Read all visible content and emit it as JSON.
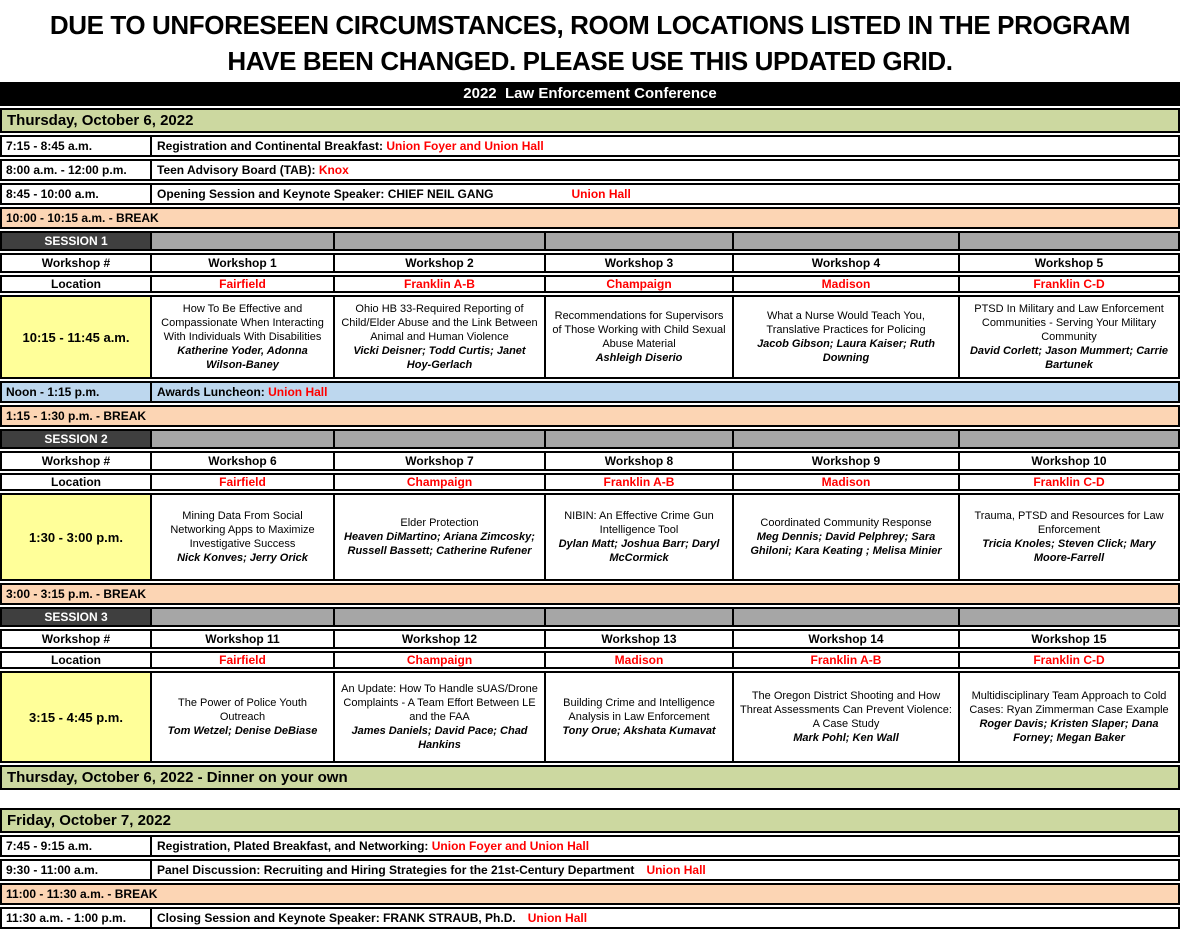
{
  "banner": {
    "line1": "DUE TO UNFORESEEN CIRCUMSTANCES, ROOM LOCATIONS LISTED IN THE PROGRAM",
    "line2": "HAVE BEEN CHANGED. PLEASE USE THIS UPDATED GRID."
  },
  "title": "2022  Law Enforcement Conference",
  "colors": {
    "day_header_green": "#ccd8a0",
    "break_peach": "#fcd5b4",
    "lunch_blue": "#bdd7ee",
    "time_yellow": "#ffff99",
    "session_dark": "#3f3f3f",
    "session_gray": "#a6a6a6",
    "location_red": "#ff0000"
  },
  "grid_labels": {
    "workshop_col": "Workshop #",
    "location_col": "Location"
  },
  "thursday": {
    "header": "Thursday, October 6, 2022",
    "events": [
      {
        "time": "7:15 - 8:45 a.m.",
        "desc": "Registration and Continental Breakfast:",
        "location": "Union Foyer and Union Hall"
      },
      {
        "time": "8:00 a.m. - 12:00 p.m.",
        "desc": "Teen Advisory Board (TAB):",
        "location": "Knox"
      },
      {
        "time": "8:45 - 10:00 a.m.",
        "desc": "Opening Session and Keynote Speaker: CHIEF NEIL GANG",
        "location": "Union Hall"
      }
    ],
    "break_morning": "10:00 - 10:15 a.m.  - BREAK",
    "lunch": {
      "time": "Noon - 1:15 p.m.",
      "desc": "Awards Luncheon:",
      "location": "Union Hall"
    },
    "break_afternoon1": "1:15 - 1:30 p.m. - BREAK",
    "break_afternoon2": "3:00 - 3:15 p.m. - BREAK",
    "dinner": "Thursday, October 6, 2022 - Dinner on your own"
  },
  "sessions": [
    {
      "name": "SESSION 1",
      "time": "10:15 - 11:45 a.m.",
      "workshops": [
        {
          "num": "Workshop 1",
          "room": "Fairfield",
          "title": "How To Be Effective and Compassionate When Interacting With Individuals With Disabilities",
          "speakers": "Katherine Yoder, Adonna Wilson-Baney"
        },
        {
          "num": "Workshop 2",
          "room": "Franklin A-B",
          "title": "Ohio HB 33-Required Reporting of Child/Elder Abuse and the Link Between Animal and Human Violence",
          "speakers": "Vicki Deisner; Todd Curtis; Janet Hoy-Gerlach"
        },
        {
          "num": "Workshop 3",
          "room": "Champaign",
          "title": "Recommendations for Supervisors of Those Working with Child Sexual Abuse Material",
          "speakers": "Ashleigh Diserio"
        },
        {
          "num": "Workshop 4",
          "room": "Madison",
          "title": "What a Nurse Would Teach You, Translative Practices for Policing",
          "speakers": "Jacob Gibson; Laura Kaiser; Ruth Downing"
        },
        {
          "num": "Workshop 5",
          "room": "Franklin C-D",
          "title": "PTSD In Military and Law Enforcement Communities - Serving Your Military Community",
          "speakers": "David Corlett; Jason Mummert; Carrie Bartunek"
        }
      ]
    },
    {
      "name": "SESSION 2",
      "time": "1:30 - 3:00 p.m.",
      "workshops": [
        {
          "num": "Workshop 6",
          "room": "Fairfield",
          "title": "Mining Data From Social Networking Apps to Maximize Investigative Success",
          "speakers": "Nick Konves; Jerry Orick"
        },
        {
          "num": "Workshop 7",
          "room": "Champaign",
          "title": "Elder Protection",
          "speakers": "Heaven DiMartino; Ariana Zimcosky; Russell Bassett; Catherine Rufener"
        },
        {
          "num": "Workshop 8",
          "room": "Franklin A-B",
          "title": "NIBIN: An Effective Crime Gun Intelligence Tool",
          "speakers": "Dylan Matt; Joshua Barr; Daryl McCormick"
        },
        {
          "num": "Workshop 9",
          "room": "Madison",
          "title": "Coordinated Community Response",
          "speakers": "Meg Dennis; David Pelphrey; Sara Ghiloni; Kara Keating ; Melisa Minier"
        },
        {
          "num": "Workshop 10",
          "room": "Franklin C-D",
          "title": "Trauma, PTSD and Resources for Law Enforcement",
          "speakers": "Tricia Knoles; Steven Click; Mary Moore-Farrell"
        }
      ]
    },
    {
      "name": "SESSION 3",
      "time": "3:15 - 4:45 p.m.",
      "workshops": [
        {
          "num": "Workshop 11",
          "room": "Fairfield",
          "title": "The Power of Police Youth Outreach",
          "speakers": "Tom Wetzel; Denise DeBiase"
        },
        {
          "num": "Workshop 12",
          "room": "Champaign",
          "title": "An Update: How To Handle sUAS/Drone Complaints - A Team Effort Between LE and the FAA",
          "speakers": "James Daniels; David Pace; Chad Hankins"
        },
        {
          "num": "Workshop 13",
          "room": "Madison",
          "title": "Building Crime and Intelligence Analysis in Law Enforcement",
          "speakers": "Tony Orue; Akshata Kumavat"
        },
        {
          "num": "Workshop 14",
          "room": "Franklin A-B",
          "title": "The Oregon District Shooting and How Threat Assessments Can Prevent Violence: A Case Study",
          "speakers": "Mark Pohl; Ken Wall"
        },
        {
          "num": "Workshop 15",
          "room": "Franklin C-D",
          "title": "Multidisciplinary Team Approach to Cold Cases: Ryan Zimmerman Case Example",
          "speakers": "Roger Davis; Kristen Slaper; Dana Forney; Megan Baker"
        }
      ]
    }
  ],
  "friday": {
    "header": "Friday, October 7, 2022",
    "events": [
      {
        "time": "7:45 - 9:15 a.m.",
        "desc": "Registration, Plated Breakfast, and Networking:",
        "location": "Union Foyer and Union Hall"
      },
      {
        "time": "9:30 - 11:00 a.m.",
        "desc": "Panel Discussion: Recruiting and Hiring Strategies for the 21st-Century Department",
        "location": "Union Hall"
      }
    ],
    "break": "11:00 - 11:30 a.m. - BREAK",
    "closing": {
      "time": "11:30 a.m. - 1:00 p.m.",
      "desc": "Closing Session and Keynote Speaker: FRANK STRAUB, Ph.D.",
      "location": "Union Hall"
    }
  }
}
